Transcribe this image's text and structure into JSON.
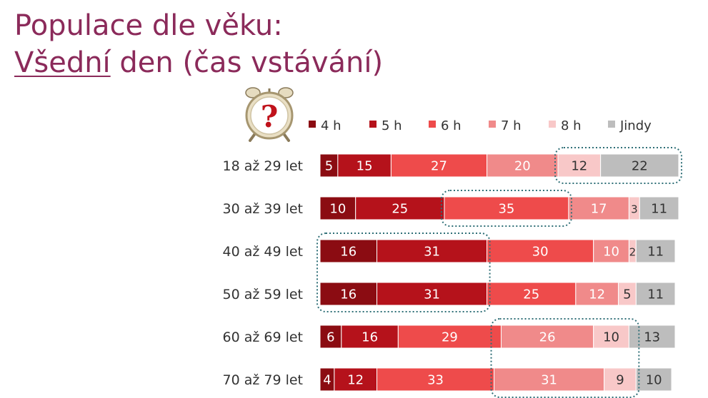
{
  "header": {
    "title_line1": "Populace dle věku:",
    "title_line2_underlined": "Všední",
    "title_line2_rest": " den (čas vstávání)"
  },
  "icons": {
    "clock": "alarm-clock-question-icon",
    "clock_glyph": "?"
  },
  "colors": {
    "title": "#8b2a5a",
    "4 h": "#8b0c12",
    "5 h": "#b5121b",
    "6 h": "#ee4b4b",
    "7 h": "#f08a8a",
    "8 h": "#f8c8c8",
    "Jindy": "#bdbdbd",
    "highlight_border": "#2f6f77"
  },
  "chart_data": {
    "type": "bar",
    "orientation": "horizontal",
    "stacked": true,
    "normalized_to": 100,
    "categories": [
      "18 až 29 let",
      "30 až 39 let",
      "40 až 49 let",
      "50 až 59 let",
      "60 až 69 let",
      "70 až 79 let"
    ],
    "series": [
      {
        "name": "4 h",
        "values": [
          5,
          10,
          16,
          16,
          6,
          4
        ]
      },
      {
        "name": "5 h",
        "values": [
          15,
          25,
          31,
          31,
          16,
          12
        ]
      },
      {
        "name": "6 h",
        "values": [
          27,
          35,
          30,
          25,
          29,
          33
        ]
      },
      {
        "name": "7 h",
        "values": [
          20,
          17,
          10,
          12,
          26,
          31
        ]
      },
      {
        "name": "8 h",
        "values": [
          12,
          3,
          2,
          5,
          10,
          9
        ]
      },
      {
        "name": "Jindy",
        "values": [
          22,
          11,
          11,
          11,
          13,
          10
        ]
      }
    ],
    "legend_position": "top",
    "grid": false,
    "highlights": [
      {
        "category": "18 až 29 let",
        "series": [
          "8 h",
          "Jindy"
        ]
      },
      {
        "category": "30 až 39 let",
        "series": [
          "6 h"
        ]
      },
      {
        "categories": [
          "40 až 49 let",
          "50 až 59 let"
        ],
        "series": [
          "4 h",
          "5 h"
        ]
      },
      {
        "categories": [
          "60 až 69 let",
          "70 až 79 let"
        ],
        "series": [
          "7 h",
          "8 h"
        ]
      }
    ]
  }
}
